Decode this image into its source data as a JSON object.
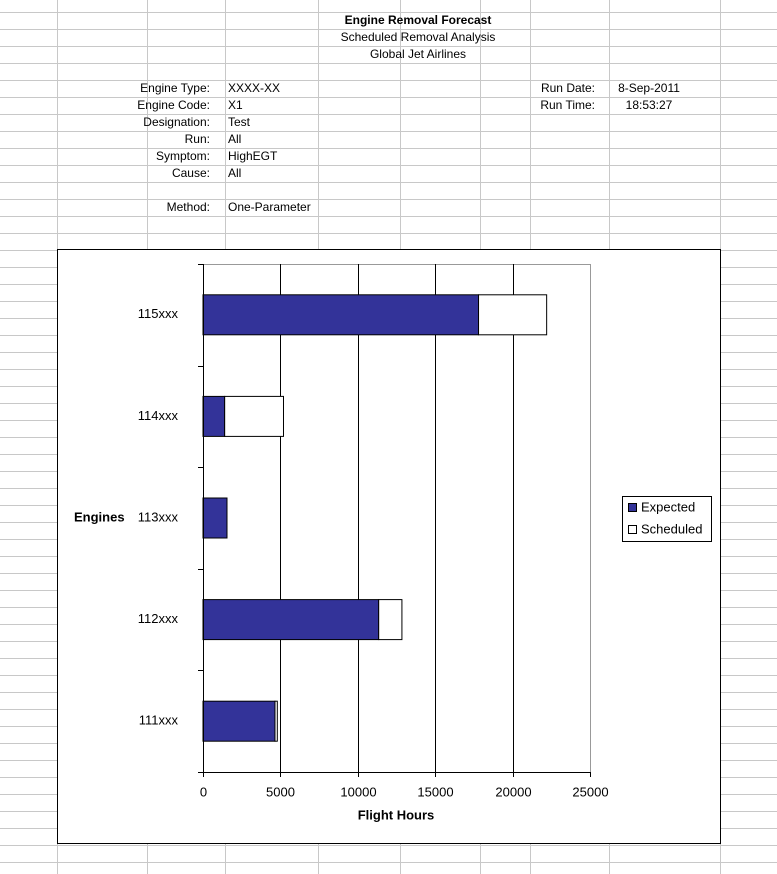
{
  "header": {
    "title": "Engine Removal Forecast",
    "subtitle": "Scheduled Removal Analysis",
    "company": "Global Jet Airlines",
    "fields": [
      {
        "label": "Engine Type:",
        "value": "XXXX-XX"
      },
      {
        "label": "Engine Code:",
        "value": "X1"
      },
      {
        "label": "Designation:",
        "value": "Test"
      },
      {
        "label": "Run:",
        "value": "All"
      },
      {
        "label": "Symptom:",
        "value": "HighEGT"
      },
      {
        "label": "Cause:",
        "value": "All"
      },
      {
        "label": "Method:",
        "value": "One-Parameter"
      }
    ],
    "run_info": [
      {
        "label": "Run Date:",
        "value": "8-Sep-2011"
      },
      {
        "label": "Run Time:",
        "value": "18:53:27"
      }
    ]
  },
  "chart_data": {
    "type": "stacked-barh",
    "x_label": "Flight Hours",
    "y_label": "Engines",
    "categories": [
      "111xxx",
      "112xxx",
      "113xxx",
      "114xxx",
      "115xxx"
    ],
    "series": [
      {
        "name": "Expected",
        "color": "#333399",
        "values": [
          4650,
          11350,
          1550,
          1400,
          17800
        ]
      },
      {
        "name": "Scheduled",
        "color": "#ffffff",
        "values": [
          150,
          1500,
          0,
          3800,
          4400
        ]
      }
    ],
    "xlim": [
      0,
      25000
    ],
    "xticks": [
      0,
      5000,
      10000,
      15000,
      20000,
      25000
    ],
    "grid": true,
    "legend": "right"
  }
}
